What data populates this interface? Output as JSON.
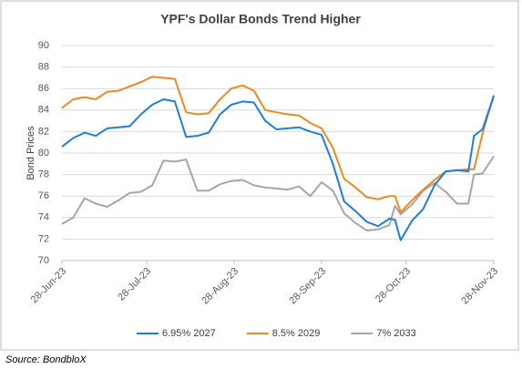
{
  "chart_data": {
    "type": "line",
    "title": "YPF's Dollar Bonds Trend Higher",
    "y_label": "Bond Prices",
    "source": "Source: BondbloX",
    "x": [
      "2023-06-28",
      "2023-07-02",
      "2023-07-06",
      "2023-07-10",
      "2023-07-14",
      "2023-07-18",
      "2023-07-22",
      "2023-07-26",
      "2023-07-30",
      "2023-08-03",
      "2023-08-07",
      "2023-08-11",
      "2023-08-15",
      "2023-08-19",
      "2023-08-23",
      "2023-08-27",
      "2023-08-31",
      "2023-09-04",
      "2023-09-08",
      "2023-09-12",
      "2023-09-16",
      "2023-09-20",
      "2023-09-24",
      "2023-09-28",
      "2023-10-02",
      "2023-10-06",
      "2023-10-10",
      "2023-10-14",
      "2023-10-18",
      "2023-10-22",
      "2023-10-24",
      "2023-10-26",
      "2023-10-30",
      "2023-11-03",
      "2023-11-07",
      "2023-11-11",
      "2023-11-15",
      "2023-11-19",
      "2023-11-21",
      "2023-11-24",
      "2023-11-28"
    ],
    "series": [
      {
        "name": "6.95% 2027",
        "color": "#1f7ed8",
        "values": [
          80.6,
          81.4,
          81.9,
          81.6,
          82.3,
          82.4,
          82.5,
          83.6,
          84.5,
          85.0,
          84.8,
          81.5,
          81.6,
          81.9,
          83.6,
          84.5,
          84.8,
          84.7,
          83.0,
          82.2,
          82.3,
          82.4,
          82.0,
          81.7,
          79.0,
          75.5,
          74.6,
          73.6,
          73.2,
          73.9,
          73.8,
          71.9,
          73.7,
          74.8,
          77.0,
          78.3,
          78.4,
          78.3,
          81.6,
          82.2,
          85.3
        ]
      },
      {
        "name": "8.5% 2029",
        "color": "#ed8a1f",
        "values": [
          84.2,
          85.0,
          85.2,
          85.0,
          85.7,
          85.8,
          86.2,
          86.6,
          87.1,
          87.0,
          86.9,
          83.8,
          83.6,
          83.7,
          85.0,
          86.0,
          86.3,
          85.8,
          84.0,
          83.8,
          83.6,
          83.5,
          82.8,
          82.3,
          80.5,
          77.6,
          76.8,
          75.9,
          75.7,
          76.0,
          76.0,
          74.5,
          75.6,
          76.6,
          77.5,
          78.3,
          78.4,
          78.5,
          78.5,
          81.8,
          85.4
        ]
      },
      {
        "name": "7% 2033",
        "color": "#a6a6a6",
        "values": [
          73.4,
          74.0,
          75.8,
          75.3,
          75.0,
          75.6,
          76.3,
          76.4,
          77.0,
          79.3,
          79.2,
          79.4,
          76.5,
          76.5,
          77.1,
          77.4,
          77.5,
          77.0,
          76.8,
          76.7,
          76.6,
          76.9,
          76.0,
          77.3,
          76.5,
          74.4,
          73.5,
          72.8,
          72.9,
          73.3,
          75.1,
          74.3,
          75.2,
          76.5,
          77.2,
          76.4,
          75.3,
          75.3,
          78.0,
          78.1,
          79.7
        ]
      }
    ],
    "xlim": [
      "2023-06-28",
      "2023-11-28"
    ],
    "xticks": [
      {
        "value": "2023-06-28",
        "label": "28-Jun-23"
      },
      {
        "value": "2023-07-28",
        "label": "28-Jul-23"
      },
      {
        "value": "2023-08-28",
        "label": "28-Aug-23"
      },
      {
        "value": "2023-09-28",
        "label": "28-Sep-23"
      },
      {
        "value": "2023-10-28",
        "label": "28-Oct-23"
      },
      {
        "value": "2023-11-28",
        "label": "28-Nov-23"
      }
    ],
    "ylim": [
      70,
      90
    ],
    "yticks": [
      70,
      72,
      74,
      76,
      78,
      80,
      82,
      84,
      86,
      88,
      90
    ],
    "grid": true,
    "legend": "bottom"
  }
}
